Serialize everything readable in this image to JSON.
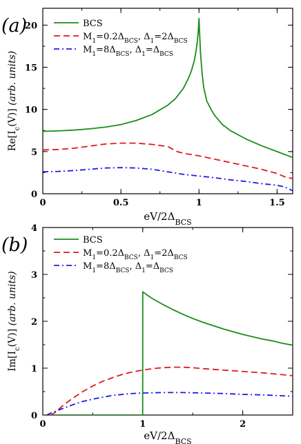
{
  "chart_data": [
    {
      "type": "line",
      "panel_label": "(a)",
      "xlabel_main": "eV/2Δ",
      "xlabel_sub": "BCS",
      "ylabel_prefix": "Re[I",
      "ylabel_sub": "c",
      "ylabel_mid": "(V)]",
      "ylabel_units": "(arb. units)",
      "xlim": [
        0,
        1.6
      ],
      "ylim": [
        0,
        22
      ],
      "xticks": [
        0,
        0.5,
        1,
        1.5
      ],
      "xtick_labels": [
        "0",
        "0.5",
        "1",
        "1.5"
      ],
      "yticks": [
        0,
        5,
        10,
        15,
        20
      ],
      "ytick_labels": [
        "0",
        "5",
        "10",
        "15",
        "20"
      ],
      "grid": false,
      "legend_position": "top-left",
      "series": [
        {
          "key": "bcs",
          "color": "#1a8c1a",
          "dash": "solid",
          "x": [
            0,
            0.1,
            0.2,
            0.3,
            0.4,
            0.5,
            0.6,
            0.7,
            0.8,
            0.85,
            0.9,
            0.93,
            0.95,
            0.97,
            0.98,
            0.99,
            0.995,
            1.0,
            1.005,
            1.01,
            1.02,
            1.03,
            1.05,
            1.08,
            1.1,
            1.15,
            1.2,
            1.3,
            1.4,
            1.5,
            1.6
          ],
          "y": [
            7.4,
            7.45,
            7.55,
            7.7,
            7.9,
            8.2,
            8.7,
            9.4,
            10.5,
            11.3,
            12.5,
            13.6,
            14.5,
            15.8,
            16.8,
            18.2,
            19.2,
            20.8,
            18.6,
            16.6,
            14.3,
            12.6,
            11.0,
            9.9,
            9.3,
            8.2,
            7.5,
            6.5,
            5.7,
            5.0,
            4.3
          ]
        },
        {
          "key": "m02",
          "color": "#e0181c",
          "dash": "dashed",
          "x": [
            0,
            0.1,
            0.2,
            0.3,
            0.4,
            0.5,
            0.6,
            0.7,
            0.8,
            0.83,
            0.86,
            0.9,
            1.0,
            1.1,
            1.2,
            1.3,
            1.4,
            1.5,
            1.55,
            1.6
          ],
          "y": [
            5.2,
            5.25,
            5.4,
            5.65,
            5.9,
            6.0,
            6.0,
            5.85,
            5.6,
            5.3,
            5.0,
            4.8,
            4.5,
            4.1,
            3.7,
            3.3,
            2.9,
            2.4,
            2.0,
            1.8
          ]
        },
        {
          "key": "m8",
          "color": "#1a1ae6",
          "dash": "dashdot",
          "x": [
            0,
            0.1,
            0.2,
            0.3,
            0.4,
            0.5,
            0.6,
            0.7,
            0.8,
            0.9,
            1.0,
            1.1,
            1.2,
            1.3,
            1.4,
            1.5,
            1.55,
            1.6
          ],
          "y": [
            2.6,
            2.65,
            2.75,
            2.9,
            3.05,
            3.1,
            3.05,
            2.9,
            2.6,
            2.3,
            2.1,
            1.9,
            1.65,
            1.45,
            1.2,
            1.0,
            0.8,
            0.35
          ]
        }
      ],
      "legend": {
        "bcs": {
          "main": "BCS"
        },
        "m02": {
          "p1": "M",
          "s1": "1",
          "p2": "=0.2Δ",
          "s2": "BCS",
          "p3": ", Δ",
          "s3": "1",
          "p4": "=2Δ",
          "s4": "BCS"
        },
        "m8": {
          "p1": "M",
          "s1": "1",
          "p2": "=8Δ",
          "s2": "BCS",
          "p3": ", Δ",
          "s3": "1",
          "p4": "=Δ",
          "s4": "BCS"
        }
      }
    },
    {
      "type": "line",
      "panel_label": "(b)",
      "xlabel_main": "eV/2Δ",
      "xlabel_sub": "BCS",
      "ylabel_prefix": "Im[I",
      "ylabel_sub": "c",
      "ylabel_mid": "(V)]",
      "ylabel_units": "(arb. units)",
      "xlim": [
        0,
        2.5
      ],
      "ylim": [
        0,
        4
      ],
      "xticks": [
        0,
        1,
        2
      ],
      "xtick_labels": [
        "0",
        "1",
        "2"
      ],
      "yticks": [
        0,
        1,
        2,
        3,
        4
      ],
      "ytick_labels": [
        "0",
        "1",
        "2",
        "3",
        "4"
      ],
      "grid": false,
      "legend_position": "top-left",
      "series": [
        {
          "key": "bcs",
          "color": "#1a8c1a",
          "dash": "solid",
          "x": [
            0,
            0.999,
            1.0,
            1.05,
            1.1,
            1.2,
            1.3,
            1.4,
            1.5,
            1.6,
            1.7,
            1.8,
            1.9,
            2.0,
            2.1,
            2.2,
            2.3,
            2.4,
            2.5
          ],
          "y": [
            0,
            0,
            2.63,
            2.55,
            2.48,
            2.36,
            2.25,
            2.15,
            2.06,
            1.98,
            1.91,
            1.84,
            1.78,
            1.72,
            1.67,
            1.62,
            1.58,
            1.53,
            1.49
          ]
        },
        {
          "key": "m02",
          "color": "#e0181c",
          "dash": "dashed",
          "x": [
            0.08,
            0.12,
            0.2,
            0.3,
            0.4,
            0.5,
            0.6,
            0.7,
            0.8,
            0.9,
            1.0,
            1.1,
            1.2,
            1.3,
            1.4,
            1.5,
            1.6,
            1.8,
            2.0,
            2.2,
            2.4,
            2.5
          ],
          "y": [
            0,
            0.05,
            0.2,
            0.36,
            0.5,
            0.62,
            0.72,
            0.8,
            0.87,
            0.92,
            0.96,
            0.99,
            1.01,
            1.02,
            1.02,
            1.01,
            0.99,
            0.96,
            0.93,
            0.9,
            0.86,
            0.84
          ]
        },
        {
          "key": "m8",
          "color": "#1a1ae6",
          "dash": "dashdot",
          "x": [
            0.04,
            0.1,
            0.2,
            0.3,
            0.4,
            0.5,
            0.6,
            0.7,
            0.8,
            0.9,
            1.0,
            1.2,
            1.4,
            1.6,
            1.8,
            2.0,
            2.2,
            2.4,
            2.5
          ],
          "y": [
            0,
            0.06,
            0.14,
            0.22,
            0.29,
            0.34,
            0.38,
            0.42,
            0.44,
            0.46,
            0.47,
            0.48,
            0.48,
            0.47,
            0.46,
            0.44,
            0.43,
            0.41,
            0.4
          ]
        }
      ],
      "legend": {
        "bcs": {
          "main": "BCS"
        },
        "m02": {
          "p1": "M",
          "s1": "1",
          "p2": "=0.2Δ",
          "s2": "BCS",
          "p3": ", Δ",
          "s3": "1",
          "p4": "=2Δ",
          "s4": "BCS"
        },
        "m8": {
          "p1": "M",
          "s1": "1",
          "p2": "=8Δ",
          "s2": "BCS",
          "p3": ", Δ",
          "s3": "1",
          "p4": "=Δ",
          "s4": "BCS"
        }
      }
    }
  ]
}
